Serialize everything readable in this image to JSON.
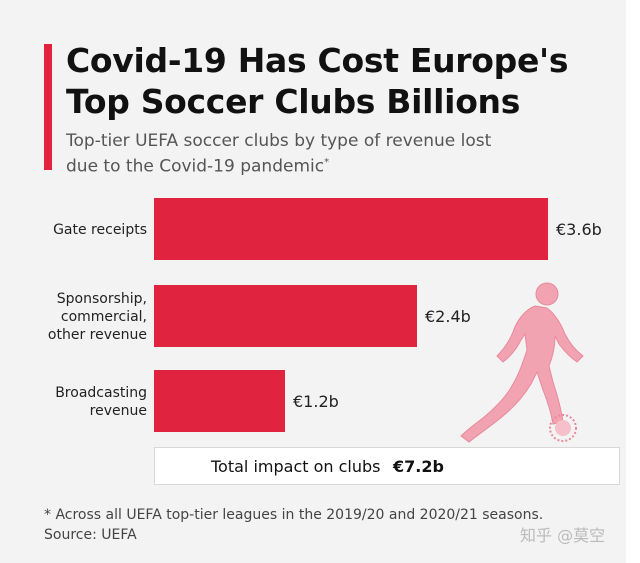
{
  "header": {
    "title_line1": "Covid-19 Has Cost Europe's",
    "title_line2": "Top Soccer Clubs Billions",
    "subtitle_line1": "Top-tier UEFA soccer clubs by type of revenue lost",
    "subtitle_line2": "due to the Covid-19 pandemic",
    "subtitle_mark": "*"
  },
  "chart_data": {
    "type": "bar",
    "orientation": "horizontal",
    "categories": [
      [
        "Gate receipts"
      ],
      [
        "Sponsorship,",
        "commercial,",
        "other revenue"
      ],
      [
        "Broadcasting",
        "revenue"
      ]
    ],
    "values": [
      3.6,
      2.4,
      1.2
    ],
    "value_labels": [
      "€3.6b",
      "€2.4b",
      "€1.2b"
    ],
    "unit": "billion EUR",
    "bar_color": "#e0243f",
    "xlim": [
      0,
      3.6
    ],
    "grid": false
  },
  "total": {
    "label": "Total impact on clubs",
    "value": "€7.2b"
  },
  "footer": {
    "footnote": "* Across all UEFA top-tier leagues in the 2019/20 and 2020/21 seasons.",
    "source": "Source: UEFA",
    "watermark": "知乎 @莫空"
  },
  "colors": {
    "accent": "#e0243f",
    "card_background": "#f3f3f3",
    "illustration": "#f2a3b1"
  }
}
